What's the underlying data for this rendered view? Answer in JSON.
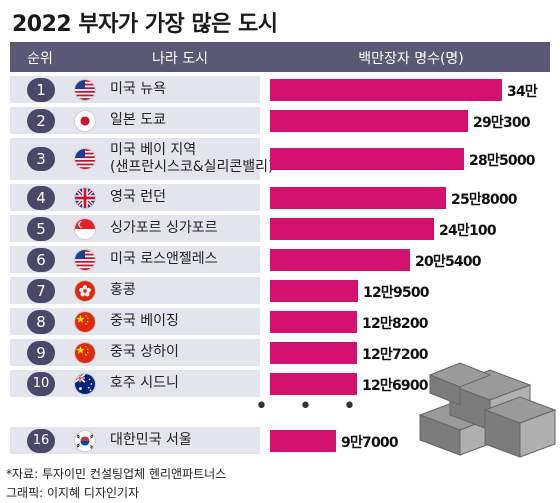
{
  "title": "2022 부자가 가장 많은 도시",
  "header": {
    "rank": "순위",
    "city": "나라 도시",
    "value": "백만장자 명수(명)"
  },
  "ellipsis": "• • •",
  "source": "*자료: 투자이민 컨설팅업체 헨리앤파트너스",
  "credit": "그래픽: 이지혜 디자인기자",
  "colors": {
    "bar": "#d4116f",
    "header": "#5b5876",
    "rank_badge": "#4a4868",
    "row_bg": "#e4e4ec"
  },
  "chart_data": {
    "type": "bar",
    "orientation": "horizontal",
    "title": "2022 부자가 가장 많은 도시",
    "value_label": "백만장자 명수(명)",
    "rows": [
      {
        "rank": "1",
        "city": "미국 뉴욕",
        "flag": "us-flag-icon",
        "value": 340000,
        "label": "34만"
      },
      {
        "rank": "2",
        "city": "일본 도쿄",
        "flag": "japan-flag-icon",
        "value": 290300,
        "label": "29만300"
      },
      {
        "rank": "3",
        "city": "미국 베이 지역",
        "city2": "(샌프란시스코&실리콘밸리)",
        "flag": "us-flag-icon",
        "value": 285000,
        "label": "28만5000"
      },
      {
        "rank": "4",
        "city": "영국 런던",
        "flag": "uk-flag-icon",
        "value": 258000,
        "label": "25만8000"
      },
      {
        "rank": "5",
        "city": "싱가포르 싱가포르",
        "flag": "singapore-flag-icon",
        "value": 240100,
        "label": "24만100"
      },
      {
        "rank": "6",
        "city": "미국 로스앤젤레스",
        "flag": "us-flag-icon",
        "value": 205400,
        "label": "20만5400"
      },
      {
        "rank": "7",
        "city": "홍콩",
        "flag": "hongkong-flag-icon",
        "value": 129500,
        "label": "12만9500"
      },
      {
        "rank": "8",
        "city": "중국 베이징",
        "flag": "china-flag-icon",
        "value": 128200,
        "label": "12만8200"
      },
      {
        "rank": "9",
        "city": "중국 상하이",
        "flag": "china-flag-icon",
        "value": 127200,
        "label": "12만7200"
      },
      {
        "rank": "10",
        "city": "호주 시드니",
        "flag": "australia-flag-icon",
        "value": 126900,
        "label": "12만6900"
      },
      {
        "rank": "16",
        "city": "대한민국 서울",
        "flag": "korea-flag-icon",
        "value": 97000,
        "label": "9만7000"
      }
    ]
  }
}
